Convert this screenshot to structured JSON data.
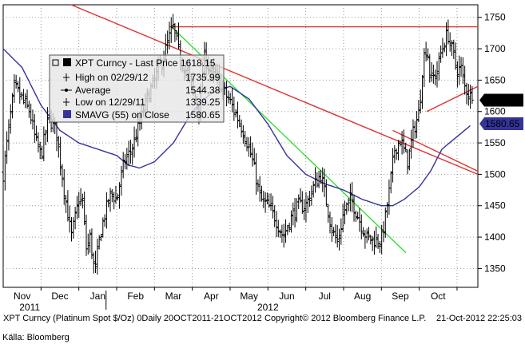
{
  "chart_data": {
    "type": "ohlc-bar",
    "ylim": [
      1320,
      1770
    ],
    "y_ticks": [
      1350,
      1400,
      1450,
      1500,
      1550,
      1600,
      1650,
      1700,
      1750
    ],
    "x_months": [
      {
        "label": "Nov",
        "x": 1.0
      },
      {
        "label": "Dec",
        "x": 2.0
      },
      {
        "label": "Jan",
        "x": 3.0
      },
      {
        "label": "Feb",
        "x": 4.0
      },
      {
        "label": "Mar",
        "x": 5.0
      },
      {
        "label": "Apr",
        "x": 6.0
      },
      {
        "label": "May",
        "x": 7.0
      },
      {
        "label": "Jun",
        "x": 8.0
      },
      {
        "label": "Jul",
        "x": 9.0
      },
      {
        "label": "Aug",
        "x": 10.0
      },
      {
        "label": "Sep",
        "x": 11.0
      },
      {
        "label": "Oct",
        "x": 12.0
      }
    ],
    "x_range": [
      0.0,
      12.55
    ],
    "year_labels": [
      {
        "label": "2011",
        "x": 1.2
      },
      {
        "label": "2012",
        "x": 7.5
      }
    ],
    "price_anchors": [
      [
        0.0,
        1500
      ],
      [
        0.12,
        1560
      ],
      [
        0.3,
        1640
      ],
      [
        0.5,
        1620
      ],
      [
        0.7,
        1600
      ],
      [
        0.85,
        1555
      ],
      [
        1.0,
        1530
      ],
      [
        1.2,
        1590
      ],
      [
        1.4,
        1570
      ],
      [
        1.6,
        1480
      ],
      [
        1.8,
        1400
      ],
      [
        2.0,
        1460
      ],
      [
        2.1,
        1455
      ],
      [
        2.2,
        1380
      ],
      [
        2.3,
        1400
      ],
      [
        2.42,
        1340
      ],
      [
        2.55,
        1400
      ],
      [
        2.7,
        1440
      ],
      [
        2.85,
        1470
      ],
      [
        3.0,
        1460
      ],
      [
        3.2,
        1520
      ],
      [
        3.4,
        1540
      ],
      [
        3.6,
        1580
      ],
      [
        3.8,
        1620
      ],
      [
        4.0,
        1650
      ],
      [
        4.2,
        1680
      ],
      [
        4.4,
        1720
      ],
      [
        4.5,
        1735
      ],
      [
        4.7,
        1680
      ],
      [
        4.9,
        1660
      ],
      [
        5.05,
        1625
      ],
      [
        5.2,
        1600
      ],
      [
        5.3,
        1690
      ],
      [
        5.5,
        1660
      ],
      [
        5.7,
        1650
      ],
      [
        5.9,
        1625
      ],
      [
        6.0,
        1615
      ],
      [
        6.2,
        1590
      ],
      [
        6.4,
        1560
      ],
      [
        6.6,
        1520
      ],
      [
        6.8,
        1460
      ],
      [
        7.0,
        1450
      ],
      [
        7.2,
        1430
      ],
      [
        7.4,
        1400
      ],
      [
        7.6,
        1430
      ],
      [
        7.8,
        1450
      ],
      [
        8.0,
        1450
      ],
      [
        8.2,
        1480
      ],
      [
        8.4,
        1500
      ],
      [
        8.5,
        1470
      ],
      [
        8.7,
        1410
      ],
      [
        8.85,
        1390
      ],
      [
        9.0,
        1440
      ],
      [
        9.2,
        1460
      ],
      [
        9.4,
        1430
      ],
      [
        9.6,
        1400
      ],
      [
        9.8,
        1395
      ],
      [
        10.0,
        1395
      ],
      [
        10.1,
        1430
      ],
      [
        10.2,
        1470
      ],
      [
        10.35,
        1540
      ],
      [
        10.5,
        1555
      ],
      [
        10.7,
        1520
      ],
      [
        10.85,
        1570
      ],
      [
        11.0,
        1600
      ],
      [
        11.1,
        1680
      ],
      [
        11.2,
        1705
      ],
      [
        11.3,
        1650
      ],
      [
        11.45,
        1660
      ],
      [
        11.6,
        1700
      ],
      [
        11.75,
        1725
      ],
      [
        11.9,
        1690
      ],
      [
        12.0,
        1665
      ],
      [
        12.1,
        1670
      ],
      [
        12.2,
        1640
      ],
      [
        12.3,
        1630
      ],
      [
        12.4,
        1618
      ]
    ],
    "sma_anchors": [
      [
        0.0,
        1700
      ],
      [
        0.5,
        1670
      ],
      [
        1.0,
        1610
      ],
      [
        1.5,
        1570
      ],
      [
        2.0,
        1550
      ],
      [
        2.5,
        1540
      ],
      [
        3.0,
        1530
      ],
      [
        3.3,
        1515
      ],
      [
        3.6,
        1510
      ],
      [
        4.0,
        1520
      ],
      [
        4.5,
        1550
      ],
      [
        5.0,
        1600
      ],
      [
        5.5,
        1630
      ],
      [
        6.0,
        1640
      ],
      [
        6.5,
        1620
      ],
      [
        7.0,
        1580
      ],
      [
        7.5,
        1530
      ],
      [
        8.0,
        1500
      ],
      [
        8.5,
        1485
      ],
      [
        9.0,
        1475
      ],
      [
        9.5,
        1460
      ],
      [
        10.0,
        1450
      ],
      [
        10.3,
        1450
      ],
      [
        10.6,
        1460
      ],
      [
        11.0,
        1480
      ],
      [
        11.3,
        1505
      ],
      [
        11.6,
        1540
      ],
      [
        12.0,
        1560
      ],
      [
        12.4,
        1580
      ]
    ],
    "trendlines": [
      {
        "color": "#e03030",
        "points": [
          [
            1.8,
            1770
          ],
          [
            12.55,
            1500
          ]
        ]
      },
      {
        "color": "#e03030",
        "points": [
          [
            4.4,
            1735
          ],
          [
            12.55,
            1735
          ]
        ]
      },
      {
        "color": "#e03030",
        "points": [
          [
            11.2,
            1600
          ],
          [
            12.55,
            1640
          ]
        ]
      },
      {
        "color": "#e03030",
        "points": [
          [
            10.3,
            1570
          ],
          [
            12.55,
            1505
          ]
        ]
      },
      {
        "color": "#33dd33",
        "points": [
          [
            4.45,
            1735
          ],
          [
            10.65,
            1375
          ]
        ]
      }
    ],
    "last_price": 1618.15,
    "last_price_label": "1618.15",
    "sma_last": 1580.65,
    "sma_last_label": "1580.65",
    "legend": {
      "title": "XPT Curncy - Last Price",
      "title_value": "1618.15",
      "rows": [
        {
          "label": "High on 02/29/12",
          "value": "1735.99",
          "marker": "hl"
        },
        {
          "label": "Average",
          "value": "1544.38",
          "marker": "avg"
        },
        {
          "label": "Low on 12/29/11",
          "value": "1339.25",
          "marker": "hl"
        },
        {
          "label": "SMAVG (55) on Close",
          "value": "1580.65",
          "marker": "sma"
        }
      ]
    },
    "colors": {
      "price": "#000000",
      "sma": "#333399",
      "trend_red": "#e03030",
      "trend_green": "#33dd33",
      "grid": "#9a9a9a",
      "label_bg": "#000000",
      "sma_label_bg": "#333399"
    }
  },
  "footer": {
    "left": "XPT Curncy (Platinum Spot $/Oz) 0Daily 20OCT2011-21OCT2012",
    "middle": "Copyright© 2012 Bloomberg Finance L.P.",
    "right": "21-Oct-2012 22:25:03"
  },
  "source": "Källa: Bloomberg"
}
